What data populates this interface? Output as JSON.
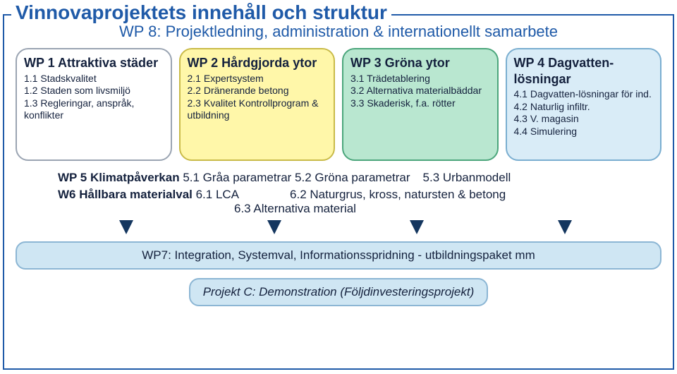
{
  "colors": {
    "frame_border": "#1f5aa8",
    "title_color": "#1f5aa8",
    "subheader_color": "#1f5aa8",
    "card_title_color": "#14213d",
    "card_text_color": "#14213d",
    "midrow_color": "#14213d",
    "arrow_color": "#14365f",
    "wp1_bg": "#ffffff",
    "wp1_border": "#9aa4b2",
    "wp2_bg": "#fff7a9",
    "wp2_border": "#c9bb49",
    "wp3_bg": "#b9e7d0",
    "wp3_border": "#4ca67c",
    "wp4_bg": "#d9ecf7",
    "wp4_border": "#7aaed0",
    "wp7_bg": "#cfe6f3",
    "wp7_border": "#8cb6d4",
    "projc_bg": "#cfe6f3",
    "projc_border": "#8cb6d4"
  },
  "layout": {
    "arrow_positions_pct": [
      16,
      39,
      61,
      84
    ]
  },
  "frame_title": "Vinnovaprojektets innehåll och struktur",
  "subheader": "WP 8: Projektledning, administration & internationellt samarbete",
  "cards": [
    {
      "key": "wp1",
      "title": "WP 1 Attraktiva städer",
      "items": [
        "1.1 Stadskvalitet",
        "1.2 Staden som livsmiljö",
        "1.3 Regleringar, anspråk, konflikter"
      ]
    },
    {
      "key": "wp2",
      "title": "WP 2 Hårdgjorda ytor",
      "items": [
        "2.1 Expertsystem",
        "2.2 Dränerande betong",
        "2.3 Kvalitet Kontrollprogram & utbildning"
      ]
    },
    {
      "key": "wp3",
      "title": "WP 3 Gröna ytor",
      "items": [
        "3.1 Trädetablering",
        "3.2 Alternativa materialbäddar",
        "3.3 Skaderisk, f.a. rötter"
      ]
    },
    {
      "key": "wp4",
      "title": "WP 4 Dagvatten-lösningar",
      "items": [
        "4.1 Dagvatten-lösningar för ind.",
        "4.2 Naturlig infiltr.",
        "4.3 V. magasin",
        "4.4 Simulering"
      ]
    }
  ],
  "mid": {
    "wp5": {
      "bold": "WP 5 Klimatpåverkan",
      "tail": " 5.1 Gråa parametrar 5.2 Gröna parametrar",
      "extra": "5.3 Urbanmodell"
    },
    "w6": {
      "bold": "W6  Hållbara materialval",
      "tail": " 6.1 LCA",
      "extra": "6.2 Naturgrus, kross, natursten & betong",
      "line2": "6.3 Alternativa material"
    }
  },
  "wp7": {
    "prefix": "WP7",
    "text": ": Integration, Systemval, Informationsspridning - utbildningspaket mm"
  },
  "projc": {
    "prefix": "Projekt C",
    "text": ": Demonstration (Följdinvesteringsprojekt)"
  }
}
